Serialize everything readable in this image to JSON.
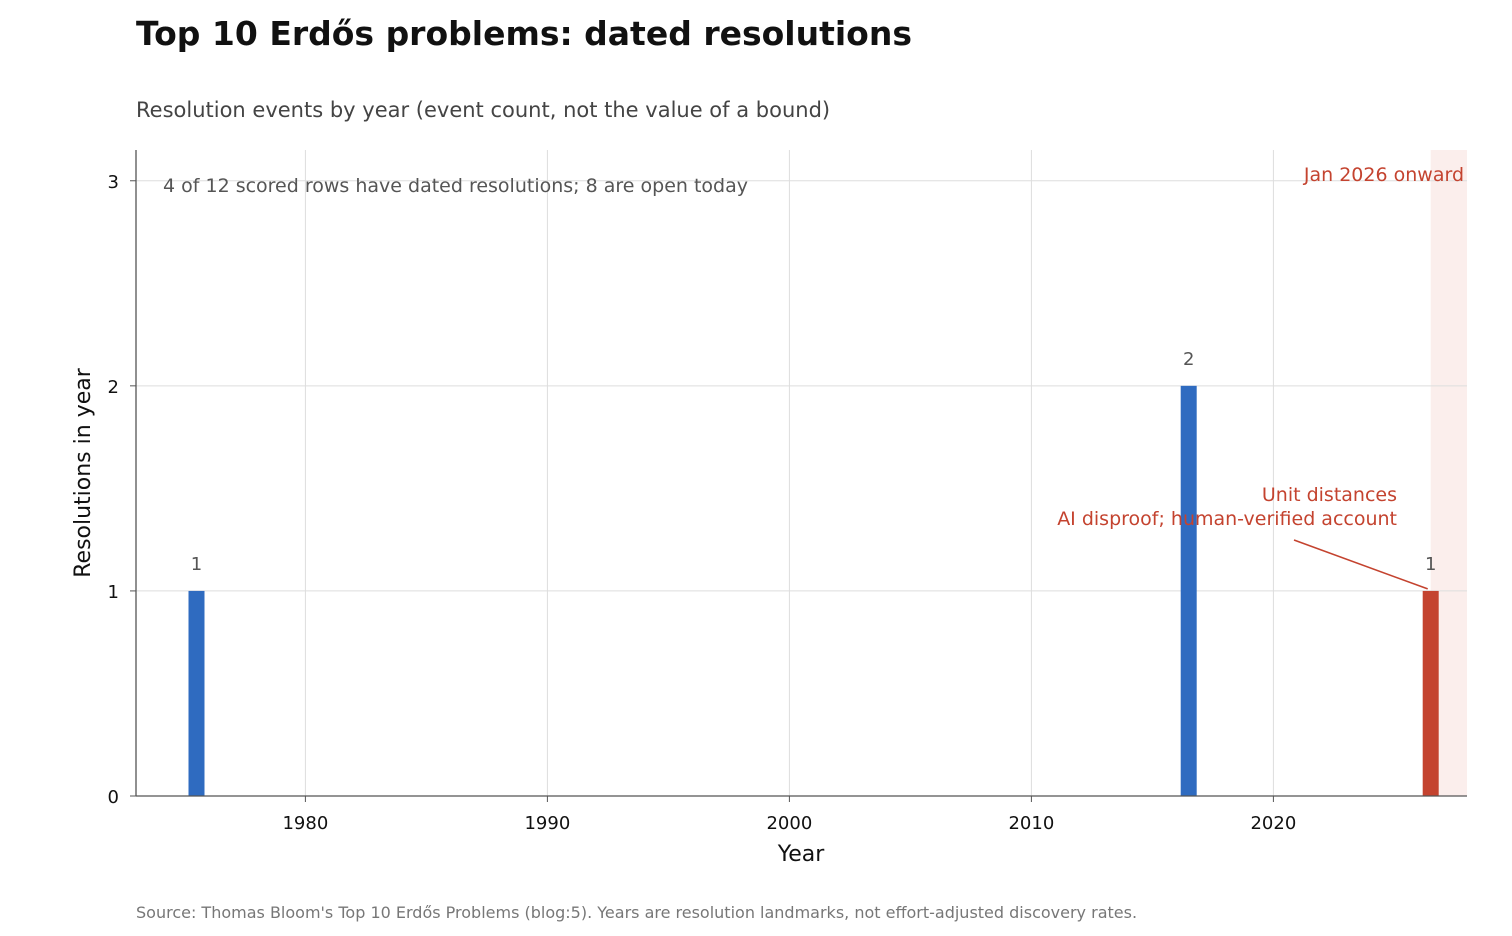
{
  "chart_data": {
    "type": "bar",
    "title": "Top 10 Erdős problems: dated resolutions",
    "subtitle": "Resolution events by year (event count, not the value of a bound)",
    "xlabel": "Year",
    "ylabel": "Resolutions in year",
    "xlim": [
      1973,
      2028
    ],
    "ylim": [
      0,
      3.15
    ],
    "x_ticks": [
      1980,
      1990,
      2000,
      2010,
      2020
    ],
    "y_ticks": [
      0,
      1,
      2,
      3
    ],
    "grid": true,
    "bars": [
      {
        "year": 1975,
        "value": 1,
        "label": "1",
        "color": "#2f6bc0"
      },
      {
        "year": 2016,
        "value": 2,
        "label": "2",
        "color": "#2f6bc0"
      },
      {
        "year": 2026,
        "value": 1,
        "label": "1",
        "color": "#c4432f"
      }
    ],
    "shaded_region": {
      "from": 2026,
      "to": 2028,
      "label": "Jan 2026 onward",
      "color": "#fbeeec"
    },
    "annotation": {
      "lines": [
        "Unit distances",
        "AI disproof; human-verified account"
      ],
      "target_year": 2026,
      "color": "#c4432f"
    },
    "note": "4 of 12 scored rows have dated resolutions; 8 are open today",
    "source": "Source: Thomas Bloom's Top 10 Erdős Problems (blog:5). Years are resolution landmarks, not effort-adjusted discovery rates."
  }
}
